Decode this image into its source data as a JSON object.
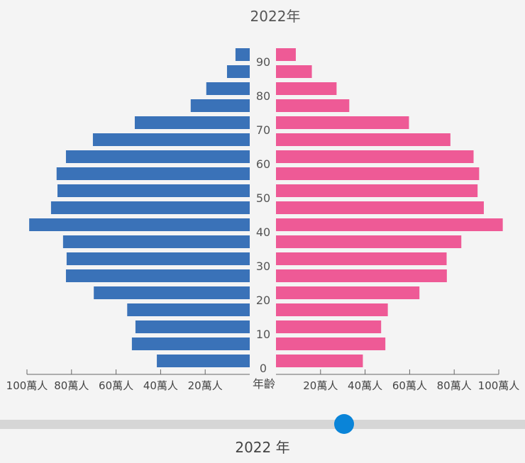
{
  "chart_data": {
    "type": "bar",
    "orientation": "horizontal-pyramid",
    "title": "2022年",
    "ylabel": "年齡",
    "age_groups": [
      90,
      85,
      80,
      75,
      70,
      65,
      60,
      55,
      50,
      45,
      40,
      35,
      30,
      25,
      20,
      15,
      10,
      5,
      0
    ],
    "age_tick_labels": [
      "90",
      "80",
      "70",
      "60",
      "50",
      "40",
      "30",
      "20",
      "10",
      "0"
    ],
    "series": [
      {
        "side": "left",
        "color": "#3a72b8",
        "values": [
          6.4,
          10.2,
          19.5,
          26.5,
          51.6,
          70.4,
          82.5,
          86.7,
          86.3,
          89.2,
          99,
          83.8,
          82.2,
          82.5,
          70,
          55,
          51.3,
          52.9,
          41.7
        ]
      },
      {
        "side": "right",
        "color": "#ee5a96",
        "values": [
          8.9,
          16.1,
          27.2,
          32.9,
          59.7,
          78.3,
          88.7,
          91.2,
          90.5,
          93.3,
          101.8,
          83.2,
          76.6,
          76.7,
          64.4,
          50.2,
          47.2,
          49.1,
          39.0
        ]
      }
    ],
    "unit": "萬人",
    "x_tick_labels": [
      "20萬人",
      "40萬人",
      "60萬人",
      "80萬人",
      "100萬人"
    ],
    "x_tick_values": [
      20,
      40,
      60,
      80,
      100
    ],
    "xlim": [
      0,
      100
    ],
    "grid": false,
    "legend": "none"
  },
  "slider": {
    "value": 2022,
    "label": "2022 年",
    "color": "#0a84d8"
  }
}
